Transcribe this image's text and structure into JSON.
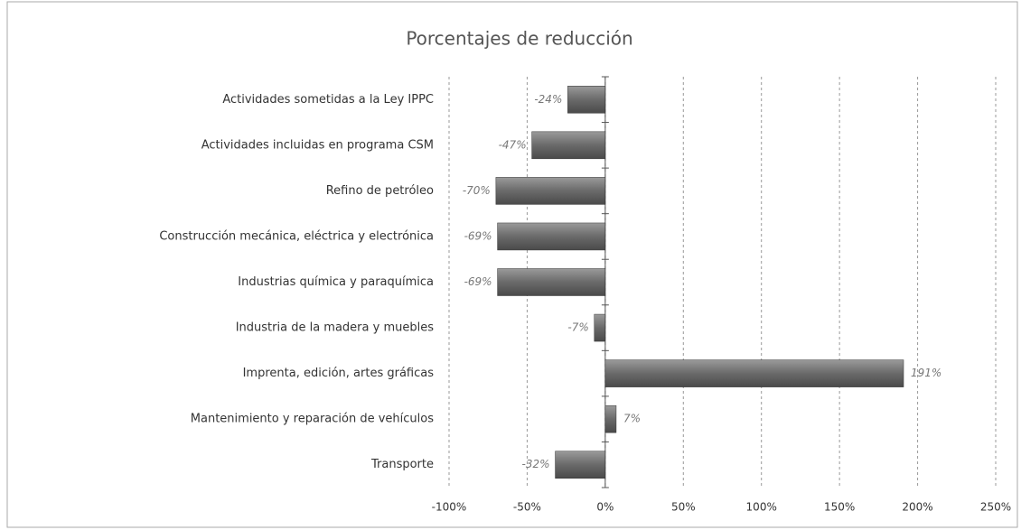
{
  "chart_data": {
    "type": "hbar",
    "title": "Porcentajes de reducción",
    "categories": [
      "Actividades sometidas a la Ley IPPC",
      "Actividades incluidas en programa CSM",
      "Refino de petróleo",
      "Construcción mecánica, eléctrica y electrónica",
      "Industrias química y paraquímica",
      "Industria de la madera y muebles",
      "Imprenta, edición, artes gráficas",
      "Mantenimiento y reparación de vehículos",
      "Transporte"
    ],
    "values": [
      -24,
      -47,
      -70,
      -69,
      -69,
      -7,
      191,
      7,
      -32
    ],
    "value_labels": [
      "-24%",
      "-47%",
      "-70%",
      "-69%",
      "-69%",
      "-7%",
      "191%",
      "7%",
      "-32%"
    ],
    "color": "#707070",
    "xlim": [
      -100,
      250
    ],
    "xticks": [
      {
        "value": -100,
        "label": "-100%"
      },
      {
        "value": -50,
        "label": "-50%"
      },
      {
        "value": 0,
        "label": "0%"
      },
      {
        "value": 50,
        "label": "50%"
      },
      {
        "value": 100,
        "label": "100%"
      },
      {
        "value": 150,
        "label": "150%"
      },
      {
        "value": 200,
        "label": "200%"
      },
      {
        "value": 250,
        "label": "250%"
      }
    ],
    "grid": true
  }
}
